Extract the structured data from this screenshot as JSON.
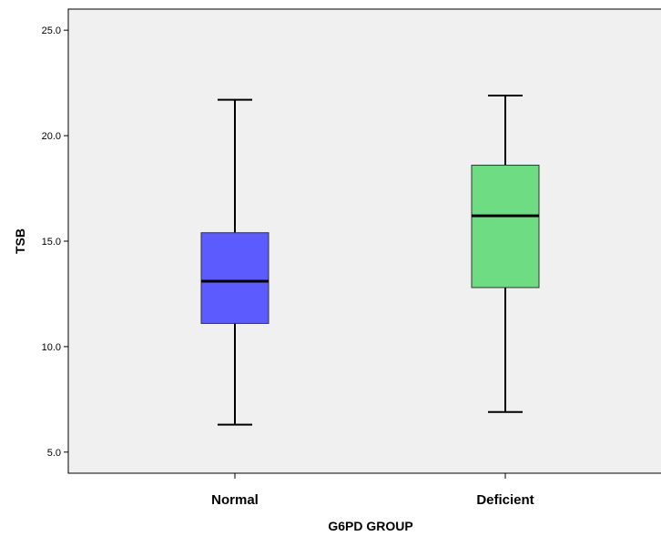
{
  "chart_data": {
    "type": "boxplot",
    "xlabel": "G6PD GROUP",
    "ylabel": "TSB",
    "ylim": [
      4.0,
      26.0
    ],
    "yticks": [
      "5.0",
      "10.0",
      "15.0",
      "20.0",
      "25.0"
    ],
    "categories": [
      "Normal",
      "Deficient"
    ],
    "boxes": [
      {
        "category": "Normal",
        "min": 6.3,
        "q1": 11.1,
        "median": 13.1,
        "q3": 15.4,
        "max": 21.7,
        "color": "#5b5bfe"
      },
      {
        "category": "Deficient",
        "min": 6.9,
        "q1": 12.8,
        "median": 16.2,
        "q3": 18.6,
        "max": 21.9,
        "color": "#6ddc82"
      }
    ],
    "plot_background": "#f0f0f0",
    "grid": false
  }
}
